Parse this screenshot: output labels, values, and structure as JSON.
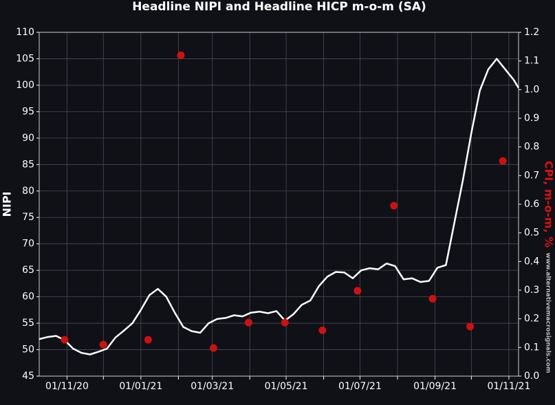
{
  "chart_data": {
    "type": "line",
    "title": "Headline NIPI and Headline HICP m-o-m (SA)",
    "ylabel": "NIPI",
    "y2label": "CPI, m-o-m, %",
    "watermark": "www.alternativemacrosignals.com",
    "xlim": [
      "2020-10-09",
      "2021-11-09"
    ],
    "xticks": [
      {
        "value": "2020-11-01",
        "label": "01/11/20"
      },
      {
        "value": "2021-01-01",
        "label": "01/01/21"
      },
      {
        "value": "2021-03-01",
        "label": "01/03/21"
      },
      {
        "value": "2021-05-01",
        "label": "01/05/21"
      },
      {
        "value": "2021-07-01",
        "label": "01/07/21"
      },
      {
        "value": "2021-09-01",
        "label": "01/09/21"
      },
      {
        "value": "2021-11-01",
        "label": "01/11/21"
      }
    ],
    "xminor": [
      "2020-12-01",
      "2021-02-01",
      "2021-04-01",
      "2021-06-01",
      "2021-08-01",
      "2021-10-01"
    ],
    "ylim": [
      45,
      110
    ],
    "yticks": [
      45,
      50,
      55,
      60,
      65,
      70,
      75,
      80,
      85,
      90,
      95,
      100,
      105,
      110
    ],
    "y2lim": [
      0,
      1.2
    ],
    "y2ticks": [
      {
        "value": 0,
        "label": "0.0"
      },
      0.1,
      0.2,
      0.3,
      0.4,
      0.5,
      0.6,
      0.7,
      0.8,
      0.9,
      {
        "value": 1,
        "label": "1.0"
      },
      1.1,
      1.2
    ],
    "grid": true,
    "series": [
      {
        "type": "line",
        "color": "#ffffff",
        "axis": "y",
        "x": [
          "2020-10-09",
          "2020-10-16",
          "2020-10-23",
          "2020-10-30",
          "2020-11-06",
          "2020-11-13",
          "2020-11-20",
          "2020-11-27",
          "2020-12-04",
          "2020-12-11",
          "2020-12-18",
          "2020-12-25",
          "2021-01-01",
          "2021-01-08",
          "2021-01-15",
          "2021-01-22",
          "2021-01-29",
          "2021-02-05",
          "2021-02-12",
          "2021-02-19",
          "2021-02-26",
          "2021-03-05",
          "2021-03-12",
          "2021-03-19",
          "2021-03-26",
          "2021-04-02",
          "2021-04-09",
          "2021-04-16",
          "2021-04-23",
          "2021-04-30",
          "2021-05-07",
          "2021-05-14",
          "2021-05-21",
          "2021-05-28",
          "2021-06-04",
          "2021-06-11",
          "2021-06-18",
          "2021-06-25",
          "2021-07-02",
          "2021-07-09",
          "2021-07-16",
          "2021-07-23",
          "2021-07-30",
          "2021-08-06",
          "2021-08-13",
          "2021-08-20",
          "2021-08-27",
          "2021-09-03",
          "2021-09-10",
          "2021-09-17",
          "2021-09-24",
          "2021-10-01",
          "2021-10-08",
          "2021-10-15",
          "2021-10-22",
          "2021-10-29",
          "2021-11-05",
          "2021-11-09"
        ],
        "values": [
          52,
          52.4,
          52.6,
          51.8,
          50.2,
          49.4,
          49.1,
          49.6,
          50.2,
          52.3,
          53.6,
          55,
          57.5,
          60.3,
          61.5,
          60,
          57,
          54.3,
          53.5,
          53.2,
          55,
          55.8,
          56,
          56.5,
          56.3,
          57,
          57.2,
          56.9,
          57.3,
          55.5,
          56.7,
          58.5,
          59.3,
          62,
          63.8,
          64.7,
          64.6,
          63.5,
          65,
          65.4,
          65.2,
          66.3,
          65.8,
          63.3,
          63.5,
          62.8,
          63,
          65.5,
          66,
          74,
          82,
          91,
          99,
          103,
          105,
          103,
          101,
          99.5
        ]
      },
      {
        "type": "scatter",
        "color": "#cc1111",
        "axis": "y2",
        "x": [
          "2020-10-30",
          "2020-12-01",
          "2021-01-07",
          "2021-02-03",
          "2021-03-02",
          "2021-03-31",
          "2021-04-30",
          "2021-05-31",
          "2021-06-29",
          "2021-07-29",
          "2021-08-30",
          "2021-09-30",
          "2021-10-27"
        ],
        "values": [
          0.127,
          0.11,
          0.127,
          1.12,
          0.098,
          0.187,
          0.187,
          0.16,
          0.298,
          0.595,
          0.27,
          0.173,
          0.751
        ]
      }
    ]
  }
}
